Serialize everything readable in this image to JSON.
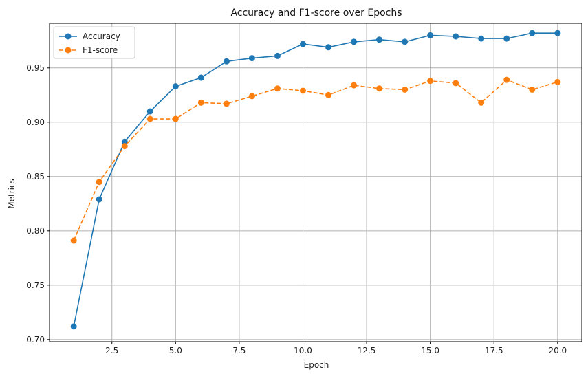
{
  "chart_data": {
    "type": "line",
    "title": "Accuracy and F1-score over Epochs",
    "xlabel": "Epoch",
    "ylabel": "Metrics",
    "xlim": [
      0.05,
      20.95
    ],
    "ylim": [
      0.698,
      0.991
    ],
    "xticks": [
      2.5,
      5.0,
      7.5,
      10.0,
      12.5,
      15.0,
      17.5,
      20.0
    ],
    "xtick_labels": [
      "2.5",
      "5.0",
      "7.5",
      "10.0",
      "12.5",
      "15.0",
      "17.5",
      "20.0"
    ],
    "yticks": [
      0.7,
      0.75,
      0.8,
      0.85,
      0.9,
      0.95
    ],
    "ytick_labels": [
      "0.70",
      "0.75",
      "0.80",
      "0.85",
      "0.90",
      "0.95"
    ],
    "grid": true,
    "legend_position": "upper-left",
    "x": [
      1,
      2,
      3,
      4,
      5,
      6,
      7,
      8,
      9,
      10,
      11,
      12,
      13,
      14,
      15,
      16,
      17,
      18,
      19,
      20
    ],
    "series": [
      {
        "name": "Accuracy",
        "color": "#1f77b4",
        "linestyle": "solid",
        "marker": "circle",
        "values": [
          0.712,
          0.829,
          0.882,
          0.91,
          0.933,
          0.941,
          0.956,
          0.959,
          0.961,
          0.972,
          0.969,
          0.974,
          0.976,
          0.974,
          0.98,
          0.979,
          0.977,
          0.977,
          0.982,
          0.982
        ]
      },
      {
        "name": "F1-score",
        "color": "#ff7f0e",
        "linestyle": "dashed",
        "marker": "circle",
        "values": [
          0.791,
          0.845,
          0.878,
          0.903,
          0.903,
          0.918,
          0.917,
          0.924,
          0.931,
          0.929,
          0.925,
          0.934,
          0.931,
          0.93,
          0.938,
          0.936,
          0.918,
          0.939,
          0.93,
          0.937
        ]
      }
    ]
  }
}
